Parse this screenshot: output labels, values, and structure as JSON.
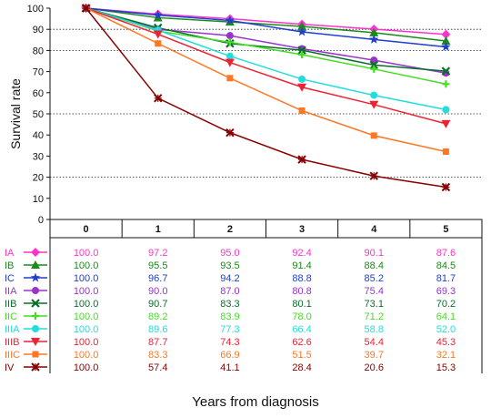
{
  "chart_data": {
    "type": "line",
    "xlabel": "Years from diagnosis",
    "ylabel": "Survival rate",
    "ylim": [
      0,
      100
    ],
    "yticks": [
      0,
      10,
      20,
      30,
      40,
      50,
      60,
      70,
      80,
      90,
      100
    ],
    "x": [
      0,
      1,
      2,
      3,
      4,
      5
    ],
    "grid": "horizontal dotted at 20, 50, 80, 90",
    "series": [
      {
        "name": "IA",
        "color": "#ff33cc",
        "marker": "diamond",
        "values": [
          100.0,
          97.2,
          95.0,
          92.4,
          90.1,
          87.6
        ]
      },
      {
        "name": "IB",
        "color": "#1a8a1a",
        "marker": "triangle-up",
        "values": [
          100.0,
          95.5,
          93.5,
          91.4,
          88.4,
          84.5
        ]
      },
      {
        "name": "IC",
        "color": "#1f3fcc",
        "marker": "star",
        "values": [
          100.0,
          96.7,
          94.2,
          88.8,
          85.2,
          81.7
        ]
      },
      {
        "name": "IIA",
        "color": "#9933cc",
        "marker": "circle",
        "values": [
          100.0,
          90.0,
          87.0,
          80.8,
          75.4,
          69.3
        ]
      },
      {
        "name": "IIB",
        "color": "#0a6e2a",
        "marker": "x",
        "values": [
          100.0,
          90.7,
          83.3,
          80.1,
          73.1,
          70.2
        ]
      },
      {
        "name": "IIC",
        "color": "#44dd22",
        "marker": "plus",
        "values": [
          100.0,
          89.2,
          83.9,
          78.0,
          71.2,
          64.1
        ]
      },
      {
        "name": "IIIA",
        "color": "#22dddd",
        "marker": "circle",
        "values": [
          100.0,
          89.6,
          77.3,
          66.4,
          58.8,
          52.0
        ]
      },
      {
        "name": "IIIB",
        "color": "#ee2233",
        "marker": "triangle-down",
        "values": [
          100.0,
          87.7,
          74.3,
          62.6,
          54.4,
          45.3
        ]
      },
      {
        "name": "IIIC",
        "color": "#ff7722",
        "marker": "square",
        "values": [
          100.0,
          83.3,
          66.9,
          51.5,
          39.7,
          32.1
        ]
      },
      {
        "name": "IV",
        "color": "#880000",
        "marker": "x-star",
        "values": [
          100.0,
          57.4,
          41.1,
          28.4,
          20.6,
          15.3
        ]
      }
    ],
    "table_values": [
      [
        "100.0",
        "97.2",
        "95.0",
        "92.4",
        "90.1",
        "87.6"
      ],
      [
        "100.0",
        "95.5",
        "93.5",
        "91.4",
        "88.4",
        "84.5"
      ],
      [
        "100.0",
        "96.7",
        "94.2",
        "88.8",
        "85.2",
        "81.7"
      ],
      [
        "100.0",
        "90.0",
        "87.0",
        "80.8",
        "75.4",
        "69.3"
      ],
      [
        "100.0",
        "90.7",
        "83.3",
        "80.1",
        "73.1",
        "70.2"
      ],
      [
        "100.0",
        "89.2",
        "83.9",
        "78.0",
        "71.2",
        "64.1"
      ],
      [
        "100.0",
        "89.6",
        "77.3",
        "66.4",
        "58.8",
        "52.0"
      ],
      [
        "100.0",
        "87.7",
        "74.3",
        "62.6",
        "54.4",
        "45.3"
      ],
      [
        "100.0",
        "83.3",
        "66.9",
        "51.5",
        "39.7",
        "32.1"
      ],
      [
        "100.0",
        "57.4",
        "41.1",
        "28.4",
        "20.6",
        "15.3"
      ]
    ]
  }
}
